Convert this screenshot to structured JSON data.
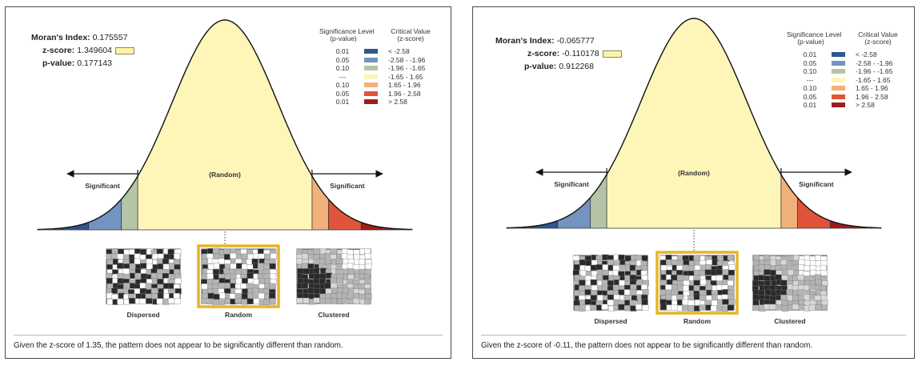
{
  "legend_header": {
    "sig_line1": "Significance Level",
    "sig_line2": "(p-value)",
    "crit_line1": "Critical Value",
    "crit_line2": "(z-score)"
  },
  "legend_rows": [
    {
      "p": "0.01",
      "z": "< -2.58",
      "color": "#2e5790"
    },
    {
      "p": "0.05",
      "z": "-2.58 - -1.96",
      "color": "#7394bf"
    },
    {
      "p": "0.10",
      "z": "-1.96 - -1.65",
      "color": "#b5c4a6"
    },
    {
      "p": "---",
      "z": "-1.65 - 1.65",
      "color": "#fdf6b8"
    },
    {
      "p": "0.10",
      "z": "1.65 - 1.96",
      "color": "#f2b07a"
    },
    {
      "p": "0.05",
      "z": "1.96 - 2.58",
      "color": "#e0553a"
    },
    {
      "p": "0.01",
      "z": "> 2.58",
      "color": "#a01c1c"
    }
  ],
  "curve_labels": {
    "random": "(Random)",
    "significant_left": "Significant",
    "significant_right": "Significant"
  },
  "map_labels": [
    "Dispersed",
    "Random",
    "Clustered"
  ],
  "highlight_color": "#e8b425",
  "panels": [
    {
      "morans_label": "Moran's Index:",
      "morans_value": "0.175557",
      "z_label": "z-score:",
      "z_value": "1.349604",
      "p_label": "p-value:",
      "p_value": "0.177143",
      "caption": "Given the z-score of 1.35, the pattern does not appear to be significantly different than random."
    },
    {
      "morans_label": "Moran's Index:",
      "morans_value": "-0.065777",
      "z_label": "z-score:",
      "z_value": "-0.110178",
      "p_label": "p-value:",
      "p_value": "0.912268",
      "caption": "Given the z-score of -0.11, the pattern does not appear to be significantly different than random."
    }
  ]
}
